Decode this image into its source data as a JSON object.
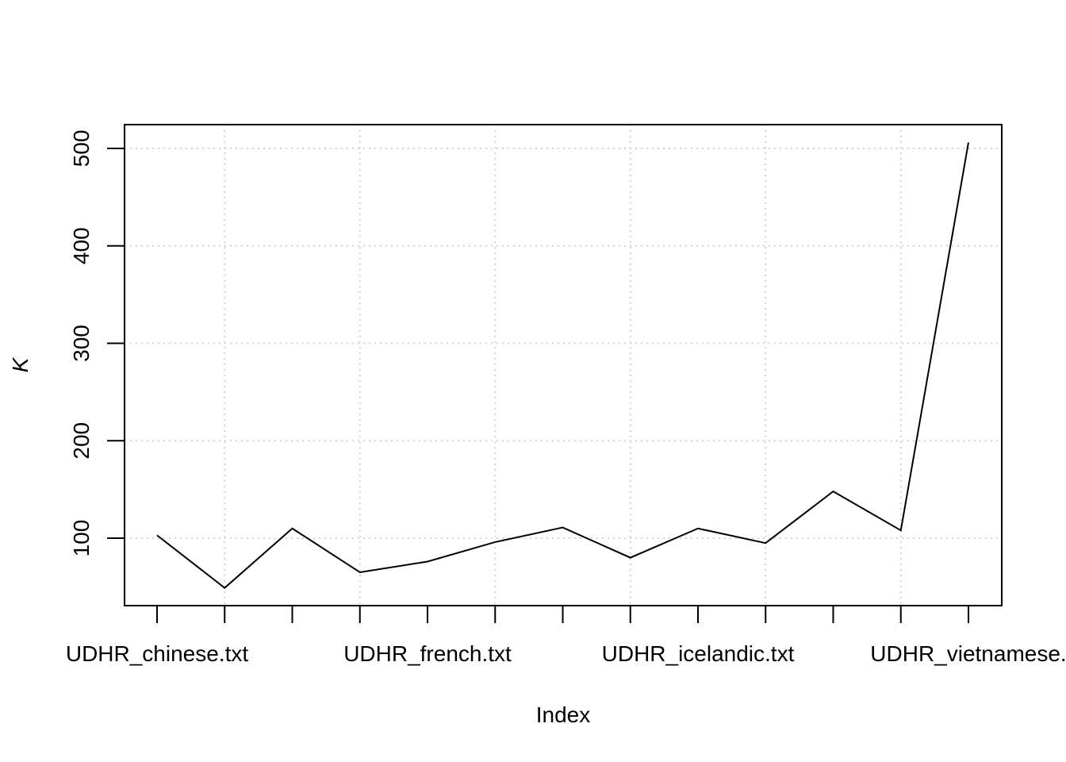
{
  "chart_data": {
    "type": "line",
    "x_label": "Index",
    "y_label": "K",
    "categories": [
      "UDHR_chinese.txt",
      null,
      null,
      null,
      "UDHR_french.txt",
      null,
      null,
      null,
      "UDHR_icelandic.txt",
      null,
      null,
      null,
      "UDHR_vietnamese."
    ],
    "series": [
      {
        "color": "#000000",
        "values": [
          103,
          49,
          110,
          65,
          76,
          96,
          111,
          80,
          110,
          95,
          148,
          108,
          506
        ]
      }
    ],
    "ylim": [
      30.8,
      524.4
    ],
    "yticks": [
      100,
      200,
      300,
      400,
      500
    ],
    "grid": true
  }
}
